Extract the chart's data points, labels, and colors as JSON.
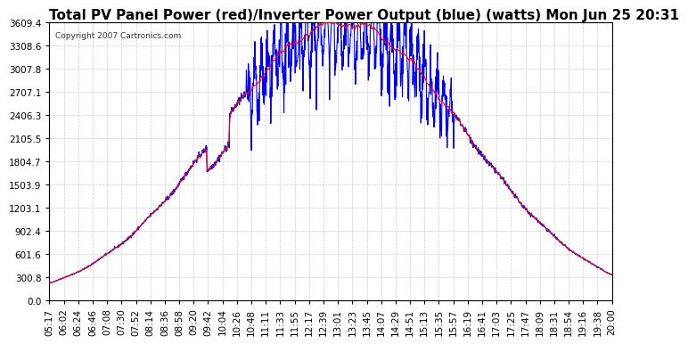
{
  "title": "Total PV Panel Power (red)/Inverter Power Output (blue) (watts) Mon Jun 25 20:31",
  "copyright": "Copyright 2007 Cartronics.com",
  "y_max": 3609.4,
  "y_min": 0.0,
  "y_ticks": [
    0.0,
    300.8,
    601.6,
    902.4,
    1203.1,
    1503.9,
    1804.7,
    2105.5,
    2406.3,
    2707.1,
    3007.8,
    3308.6,
    3609.4
  ],
  "x_labels": [
    "05:17",
    "06:02",
    "06:24",
    "06:46",
    "07:08",
    "07:30",
    "07:52",
    "08:14",
    "08:36",
    "08:58",
    "09:20",
    "09:42",
    "10:04",
    "10:26",
    "10:48",
    "11:11",
    "11:33",
    "11:55",
    "12:17",
    "12:39",
    "13:01",
    "13:23",
    "13:45",
    "14:07",
    "14:29",
    "14:51",
    "15:13",
    "15:35",
    "15:57",
    "16:19",
    "16:41",
    "17:03",
    "17:25",
    "17:47",
    "18:09",
    "18:31",
    "18:54",
    "19:16",
    "19:38",
    "20:00"
  ],
  "red_color": "#FF0000",
  "blue_color": "#0000FF",
  "bg_color": "#FFFFFF",
  "grid_color": "#CCCCCC",
  "line_width": 0.8,
  "title_fontsize": 11,
  "tick_fontsize": 7.5
}
